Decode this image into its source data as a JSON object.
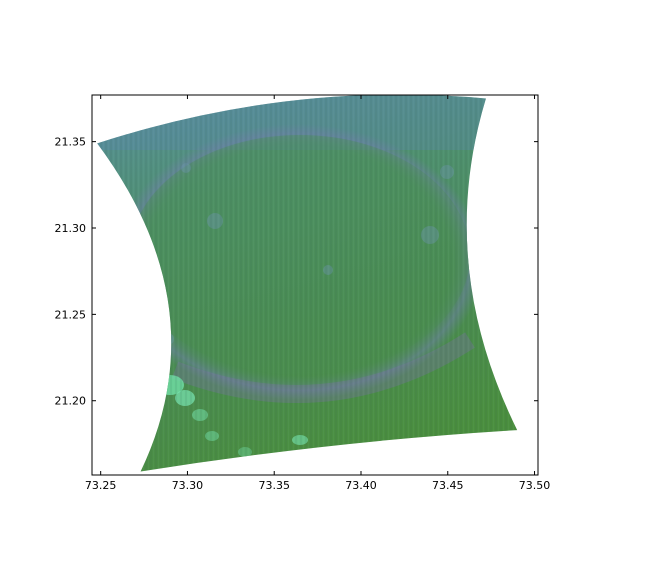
{
  "figure": {
    "title": "",
    "xlabel": "",
    "ylabel": ""
  },
  "colors": {
    "axes_frame": "#000000",
    "background": "#ffffff",
    "image_base_green": "#4f8f4f",
    "image_blue_band": "#5a88a6",
    "image_crater_rim": "#6f7fa0",
    "image_highlight": "#6fe0a6"
  },
  "chart_data": {
    "type": "heatmap",
    "description_of_marks": "false-color map-projected image tile",
    "xlim": [
      73.245,
      73.502
    ],
    "ylim": [
      21.157,
      21.377
    ],
    "x_ticks": [
      73.25,
      73.3,
      73.35,
      73.4,
      73.45,
      73.5
    ],
    "y_ticks": [
      21.2,
      21.25,
      21.3,
      21.35
    ],
    "x_tick_labels": [
      "73.25",
      "73.30",
      "73.35",
      "73.40",
      "73.45",
      "73.50"
    ],
    "y_tick_labels": [
      "21.20",
      "21.25",
      "21.30",
      "21.35"
    ],
    "footprint": {
      "top_left": [
        73.248,
        21.349
      ],
      "top_right": [
        73.472,
        21.375
      ],
      "bottom_right": [
        73.49,
        21.183
      ],
      "bottom_left": [
        73.273,
        21.159
      ]
    },
    "grid": false,
    "legend": "none"
  }
}
